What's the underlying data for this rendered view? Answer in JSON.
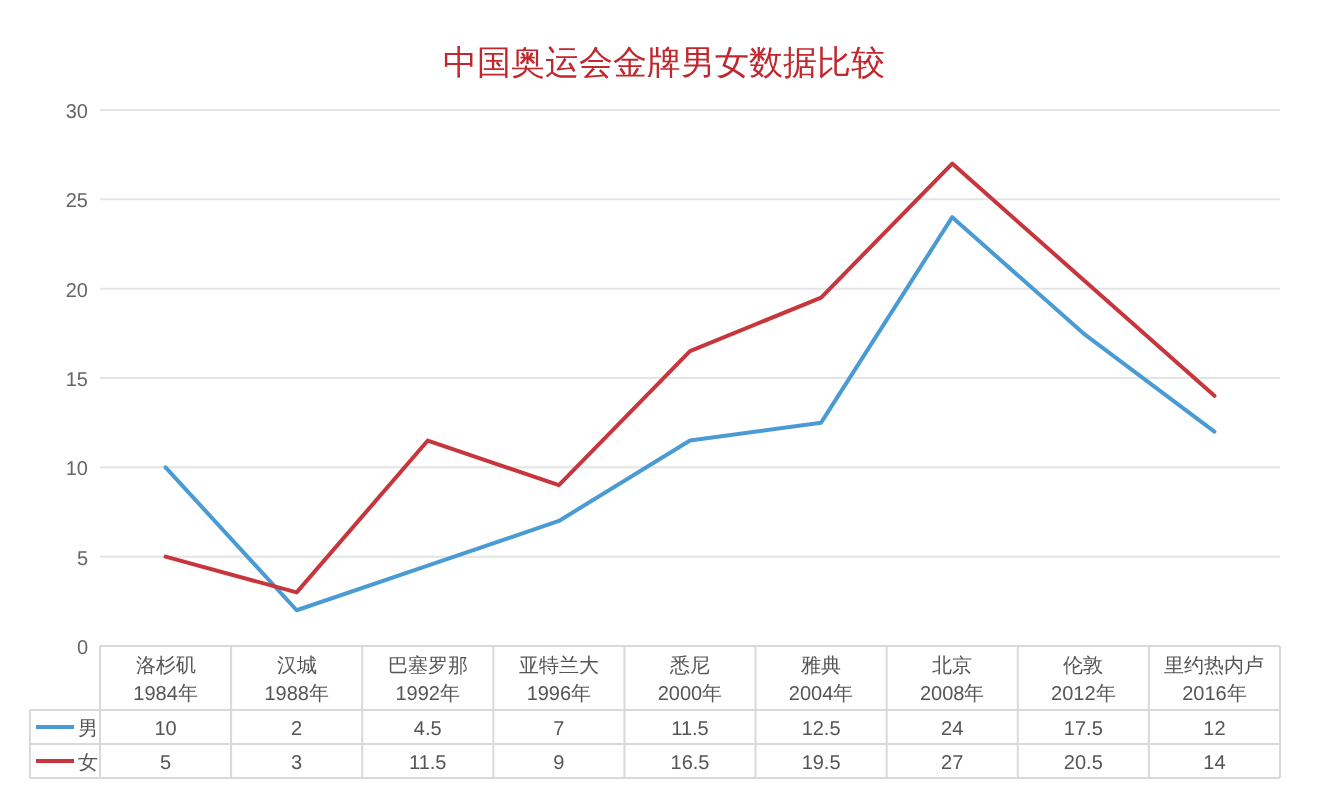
{
  "chart_data": {
    "type": "line",
    "title": "中国奥运会金牌男女数据比较",
    "categories": [
      "洛杉矶\n1984年",
      "汉城\n1988年",
      "巴塞罗那\n1992年",
      "亚特兰大\n1996年",
      "悉尼\n2000年",
      "雅典\n2004年",
      "北京\n2008年",
      "伦敦\n2012年",
      "里约热内卢\n2016年"
    ],
    "series": [
      {
        "name": "男",
        "color": "#4a9bd4",
        "values": [
          10,
          2,
          4.5,
          7,
          11.5,
          12.5,
          24,
          17.5,
          12
        ]
      },
      {
        "name": "女",
        "color": "#c8363d",
        "values": [
          5,
          3,
          11.5,
          9,
          16.5,
          19.5,
          27,
          20.5,
          14
        ]
      }
    ],
    "ylim": [
      0,
      30
    ],
    "yticks": [
      0,
      5,
      10,
      15,
      20,
      25,
      30
    ],
    "grid": "y",
    "legend": "bottom",
    "data_labels": true,
    "marker": "none",
    "line_style": "solid"
  }
}
